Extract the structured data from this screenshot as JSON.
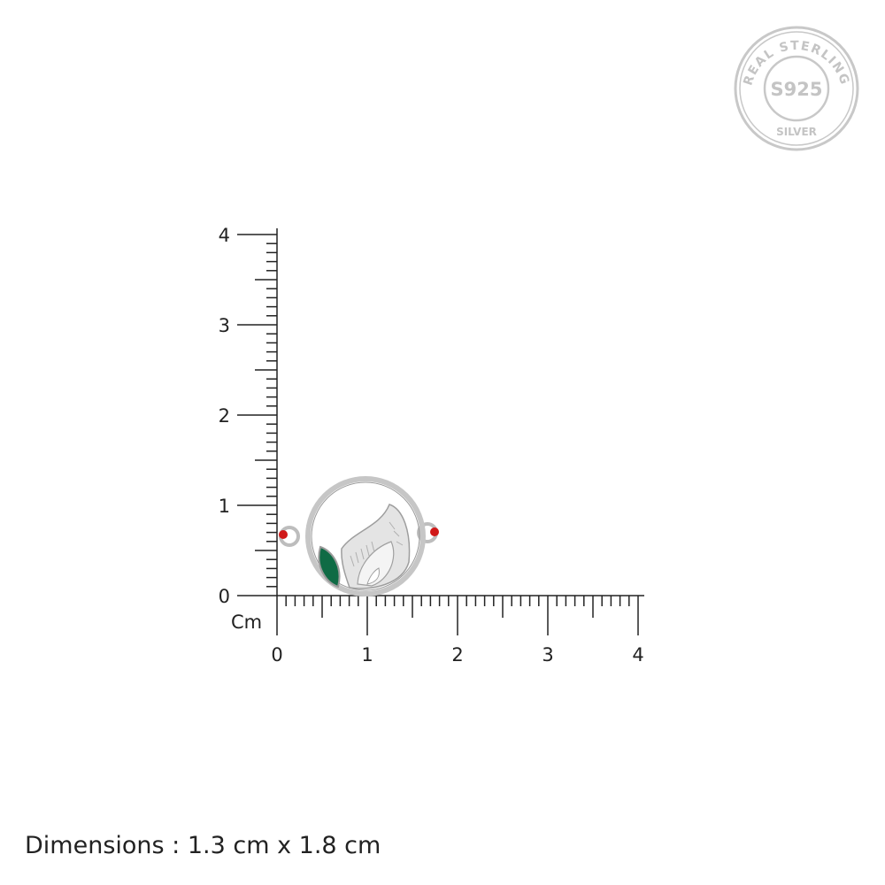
{
  "seal": {
    "top_text": "REAL STERLING",
    "center_text": "S925",
    "bottom_text": "SILVER",
    "color": "#c4c4c4"
  },
  "ruler": {
    "unit_label": "Cm",
    "x_ticks": [
      "0",
      "1",
      "2",
      "3",
      "4"
    ],
    "y_ticks": [
      "0",
      "1",
      "2",
      "3",
      "4"
    ],
    "range_cm": [
      0,
      4
    ],
    "minor_step_cm": 0.1,
    "color": "#222222"
  },
  "product": {
    "metal_color": "#c8c8c8",
    "stone_color": "#0f6b45",
    "bead_color": "#d01818"
  },
  "dimensions_text": "Dimensions : 1.3 cm x 1.8 cm"
}
